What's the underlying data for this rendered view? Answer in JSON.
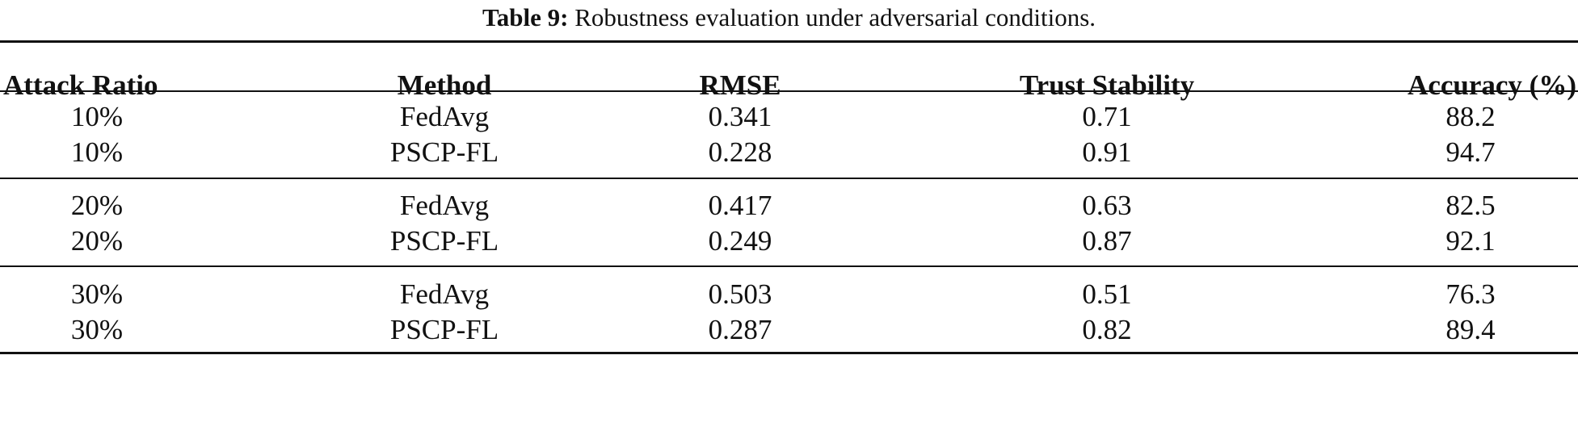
{
  "caption": {
    "label": "Table 9:",
    "text": "Robustness evaluation under adversarial conditions."
  },
  "table": {
    "headers": [
      "Attack Ratio",
      "Method",
      "RMSE",
      "Trust Stability",
      "Accuracy (%)"
    ],
    "rows": [
      [
        "10%",
        "FedAvg",
        "0.341",
        "0.71",
        "88.2"
      ],
      [
        "10%",
        "PSCP-FL",
        "0.228",
        "0.91",
        "94.7"
      ],
      [
        "20%",
        "FedAvg",
        "0.417",
        "0.63",
        "82.5"
      ],
      [
        "20%",
        "PSCP-FL",
        "0.249",
        "0.87",
        "92.1"
      ],
      [
        "30%",
        "FedAvg",
        "0.503",
        "0.51",
        "76.3"
      ],
      [
        "30%",
        "PSCP-FL",
        "0.287",
        "0.82",
        "89.4"
      ]
    ]
  }
}
